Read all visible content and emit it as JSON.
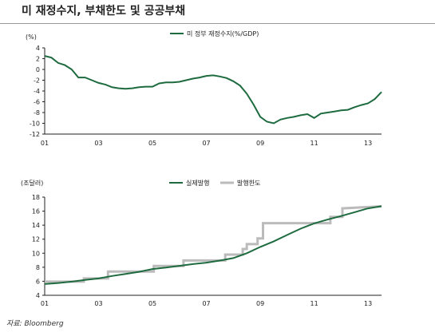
{
  "page": {
    "title": "미 재정수지, 부채한도 및 공공부채",
    "source": "자료: Bloomberg"
  },
  "chart_data": [
    {
      "type": "line",
      "unit_label": "(%)",
      "series": [
        {
          "name": "미 정부 재정수지(%/GDP)",
          "color": "#1e6b3f",
          "x": [
            2001.0,
            2001.25,
            2001.5,
            2001.75,
            2002.0,
            2002.25,
            2002.5,
            2002.75,
            2003.0,
            2003.25,
            2003.5,
            2003.75,
            2004.0,
            2004.25,
            2004.5,
            2004.75,
            2005.0,
            2005.25,
            2005.5,
            2005.75,
            2006.0,
            2006.25,
            2006.5,
            2006.75,
            2007.0,
            2007.25,
            2007.5,
            2007.75,
            2008.0,
            2008.25,
            2008.5,
            2008.75,
            2009.0,
            2009.25,
            2009.5,
            2009.75,
            2010.0,
            2010.25,
            2010.5,
            2010.75,
            2011.0,
            2011.25,
            2011.5,
            2011.75,
            2012.0,
            2012.25,
            2012.5,
            2012.75,
            2013.0,
            2013.25,
            2013.5
          ],
          "values": [
            2.5,
            2.2,
            1.2,
            0.8,
            0.0,
            -1.5,
            -1.5,
            -2.0,
            -2.5,
            -2.8,
            -3.3,
            -3.5,
            -3.6,
            -3.5,
            -3.3,
            -3.2,
            -3.2,
            -2.6,
            -2.4,
            -2.4,
            -2.3,
            -2.0,
            -1.7,
            -1.5,
            -1.2,
            -1.1,
            -1.3,
            -1.6,
            -2.2,
            -3.0,
            -4.5,
            -6.5,
            -8.8,
            -9.7,
            -10.0,
            -9.3,
            -9.0,
            -8.8,
            -8.5,
            -8.3,
            -9.0,
            -8.2,
            -8.0,
            -7.8,
            -7.6,
            -7.5,
            -7.0,
            -6.6,
            -6.3,
            -5.5,
            -4.2
          ]
        }
      ],
      "y_ticks": [
        4,
        2,
        0,
        -2,
        -4,
        -6,
        -8,
        -10,
        -12
      ],
      "ylim": [
        -12,
        4
      ],
      "x_ticks": [
        "01",
        "03",
        "05",
        "07",
        "09",
        "11",
        "13"
      ],
      "xlim": [
        2001,
        2013.5
      ],
      "legend_position": "top-center",
      "grid": false
    },
    {
      "type": "line",
      "unit_label": "(조달러)",
      "series": [
        {
          "name": "실제발행",
          "color": "#1e6b3f",
          "x": [
            2001.0,
            2001.5,
            2002.0,
            2002.5,
            2003.0,
            2003.5,
            2004.0,
            2004.5,
            2005.0,
            2005.5,
            2006.0,
            2006.5,
            2007.0,
            2007.5,
            2008.0,
            2008.5,
            2009.0,
            2009.5,
            2010.0,
            2010.5,
            2011.0,
            2011.5,
            2012.0,
            2012.5,
            2013.0,
            2013.5
          ],
          "values": [
            5.6,
            5.75,
            5.95,
            6.2,
            6.4,
            6.75,
            7.05,
            7.35,
            7.75,
            7.95,
            8.2,
            8.45,
            8.65,
            8.95,
            9.3,
            10.0,
            10.9,
            11.7,
            12.6,
            13.5,
            14.25,
            14.8,
            15.3,
            15.85,
            16.4,
            16.7
          ]
        },
        {
          "name": "발행한도",
          "color": "#bbbbbb",
          "x": [
            2001.0,
            2002.45,
            2002.45,
            2003.35,
            2003.35,
            2005.05,
            2005.05,
            2006.15,
            2006.15,
            2007.7,
            2007.7,
            2008.35,
            2008.35,
            2008.5,
            2008.5,
            2008.9,
            2008.9,
            2009.1,
            2009.1,
            2010.1,
            2010.1,
            2011.6,
            2011.6,
            2011.9,
            2011.9,
            2012.05,
            2012.05,
            2013.5
          ],
          "values": [
            5.95,
            5.95,
            6.4,
            6.4,
            7.38,
            7.38,
            8.18,
            8.18,
            8.96,
            8.96,
            9.8,
            9.8,
            10.6,
            10.6,
            11.3,
            11.3,
            12.1,
            12.1,
            14.29,
            14.29,
            14.29,
            14.29,
            15.19,
            15.19,
            15.19,
            15.19,
            16.39,
            16.69
          ]
        }
      ],
      "y_ticks": [
        18,
        16,
        14,
        12,
        10,
        8,
        6,
        4
      ],
      "ylim": [
        4,
        18
      ],
      "x_ticks": [
        "01",
        "03",
        "05",
        "07",
        "09",
        "11",
        "13"
      ],
      "xlim": [
        2001,
        2013.5
      ],
      "legend_position": "top-center",
      "grid": false
    }
  ]
}
